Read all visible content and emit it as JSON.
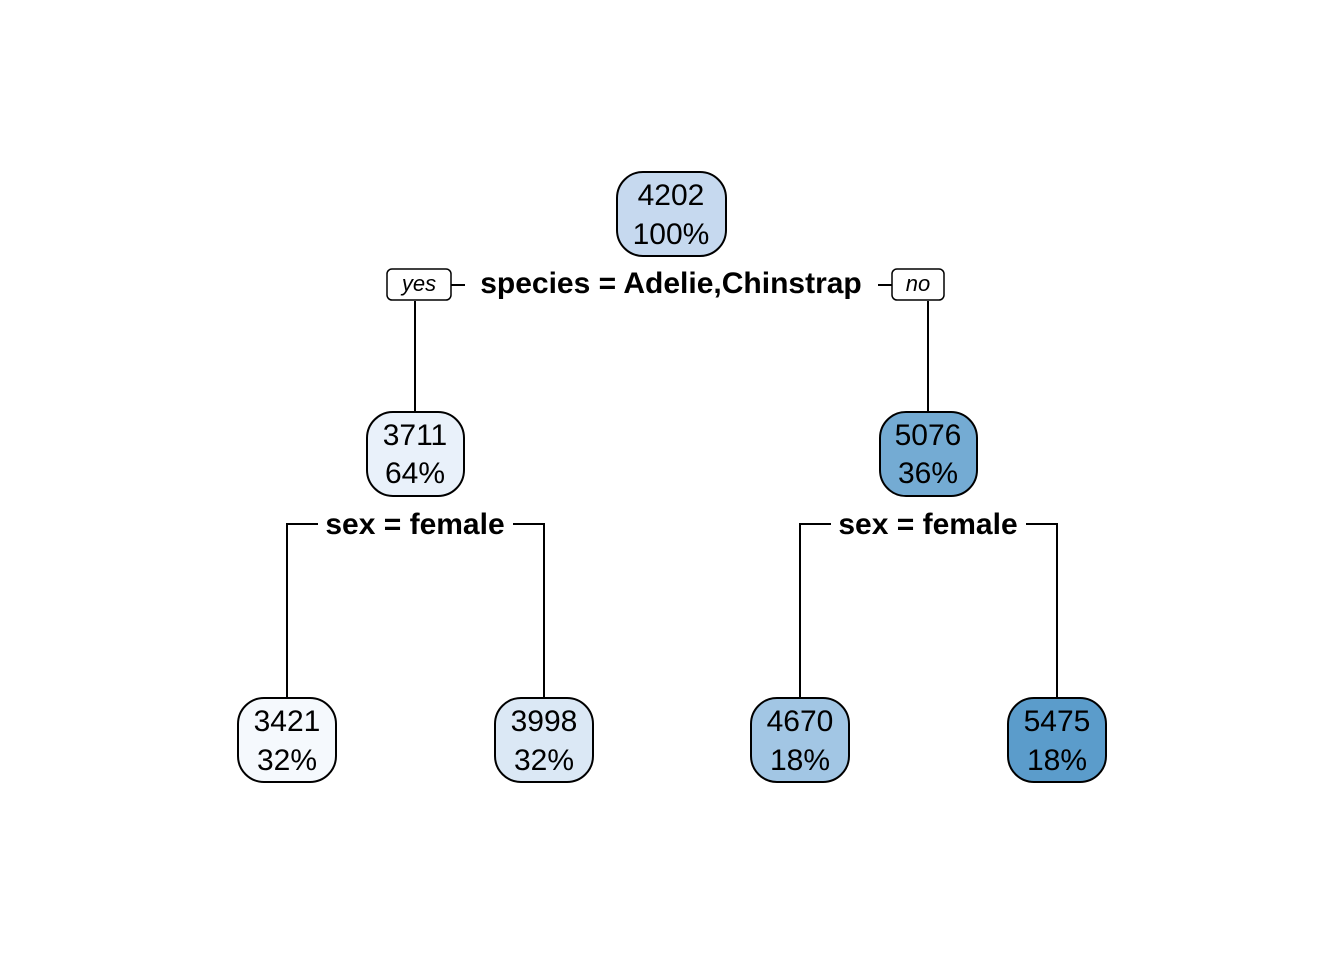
{
  "tree": {
    "root": {
      "value": "4202",
      "percent": "100%",
      "fill": "#c6d9ef",
      "split": "species = Adelie,Chinstrap",
      "branch_yes": "yes",
      "branch_no": "no"
    },
    "left": {
      "value": "3711",
      "percent": "64%",
      "fill": "#e9f1fa",
      "split": "sex = female"
    },
    "right": {
      "value": "5076",
      "percent": "36%",
      "fill": "#74abd3",
      "split": "sex = female"
    },
    "left_left": {
      "value": "3421",
      "percent": "32%",
      "fill": "#f5f9fd"
    },
    "left_right": {
      "value": "3998",
      "percent": "32%",
      "fill": "#dbe8f5"
    },
    "right_left": {
      "value": "4670",
      "percent": "18%",
      "fill": "#a2c6e4"
    },
    "right_right": {
      "value": "5475",
      "percent": "18%",
      "fill": "#5b9ccb"
    }
  }
}
